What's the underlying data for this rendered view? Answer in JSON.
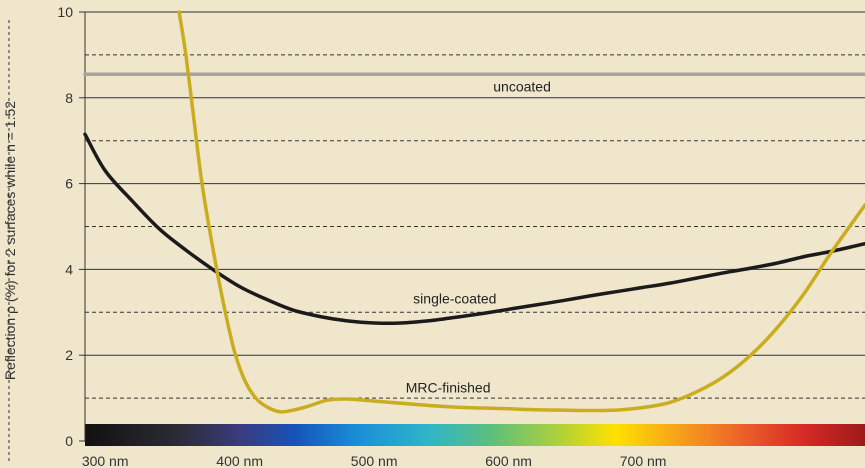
{
  "chart_data": {
    "type": "line",
    "ylabel": "Reflection ρ (%) for 2 surfaces while n = 1.52",
    "xlabel": "",
    "title": "",
    "xlim": [
      285,
      865
    ],
    "ylim": [
      0,
      10
    ],
    "x_ticks": [
      {
        "value": 300,
        "label": "300 nm"
      },
      {
        "value": 400,
        "label": "400 nm"
      },
      {
        "value": 500,
        "label": "500 nm"
      },
      {
        "value": 600,
        "label": "600 nm"
      },
      {
        "value": 700,
        "label": "700 nm"
      }
    ],
    "y_ticks": [
      {
        "value": 0,
        "label": "0"
      },
      {
        "value": 2,
        "label": "2"
      },
      {
        "value": 4,
        "label": "4"
      },
      {
        "value": 6,
        "label": "6"
      },
      {
        "value": 8,
        "label": "8"
      },
      {
        "value": 10,
        "label": "10"
      }
    ],
    "solid_grid": [
      2,
      4,
      6,
      8,
      10
    ],
    "dashed_grid": [
      1,
      3,
      5,
      7,
      9
    ],
    "series": [
      {
        "name": "uncoated",
        "color": "#a8a298",
        "x": [
          285,
          865
        ],
        "y": [
          8.55,
          8.55
        ]
      },
      {
        "name": "single-coated",
        "color": "#1b1b1b",
        "x": [
          285,
          300,
          320,
          340,
          360,
          380,
          400,
          420,
          440,
          460,
          480,
          500,
          520,
          540,
          560,
          580,
          600,
          620,
          640,
          660,
          680,
          700,
          720,
          740,
          760,
          780,
          800,
          820,
          840,
          865
        ],
        "y": [
          7.15,
          6.3,
          5.6,
          4.95,
          4.45,
          4.0,
          3.6,
          3.3,
          3.05,
          2.9,
          2.8,
          2.75,
          2.75,
          2.8,
          2.88,
          2.97,
          3.07,
          3.17,
          3.27,
          3.38,
          3.48,
          3.58,
          3.68,
          3.8,
          3.92,
          4.03,
          4.15,
          4.3,
          4.42,
          4.6
        ]
      },
      {
        "name": "MRC-finished",
        "color": "#c9ad1e",
        "x": [
          355,
          360,
          366,
          372,
          380,
          388,
          396,
          404,
          412,
          420,
          430,
          440,
          452,
          465,
          480,
          500,
          520,
          540,
          560,
          580,
          600,
          620,
          640,
          660,
          680,
          700,
          720,
          740,
          760,
          780,
          800,
          820,
          840,
          865
        ],
        "y": [
          10.0,
          9.0,
          7.5,
          6.0,
          4.5,
          3.2,
          2.1,
          1.4,
          1.0,
          0.8,
          0.68,
          0.72,
          0.82,
          0.95,
          0.98,
          0.93,
          0.88,
          0.83,
          0.79,
          0.77,
          0.75,
          0.73,
          0.72,
          0.71,
          0.72,
          0.78,
          0.9,
          1.15,
          1.5,
          2.0,
          2.65,
          3.45,
          4.4,
          5.5
        ]
      }
    ],
    "annotations": [
      {
        "text": "uncoated",
        "x": 610,
        "y": 8.15
      },
      {
        "text": "single-coated",
        "x": 560,
        "y": 3.2
      },
      {
        "text": "MRC-finished",
        "x": 555,
        "y": 1.13
      }
    ],
    "grid": true,
    "legend": "none",
    "background": "#f0e6cb",
    "gridline_color": "#333333",
    "spectrum_bar": true
  }
}
